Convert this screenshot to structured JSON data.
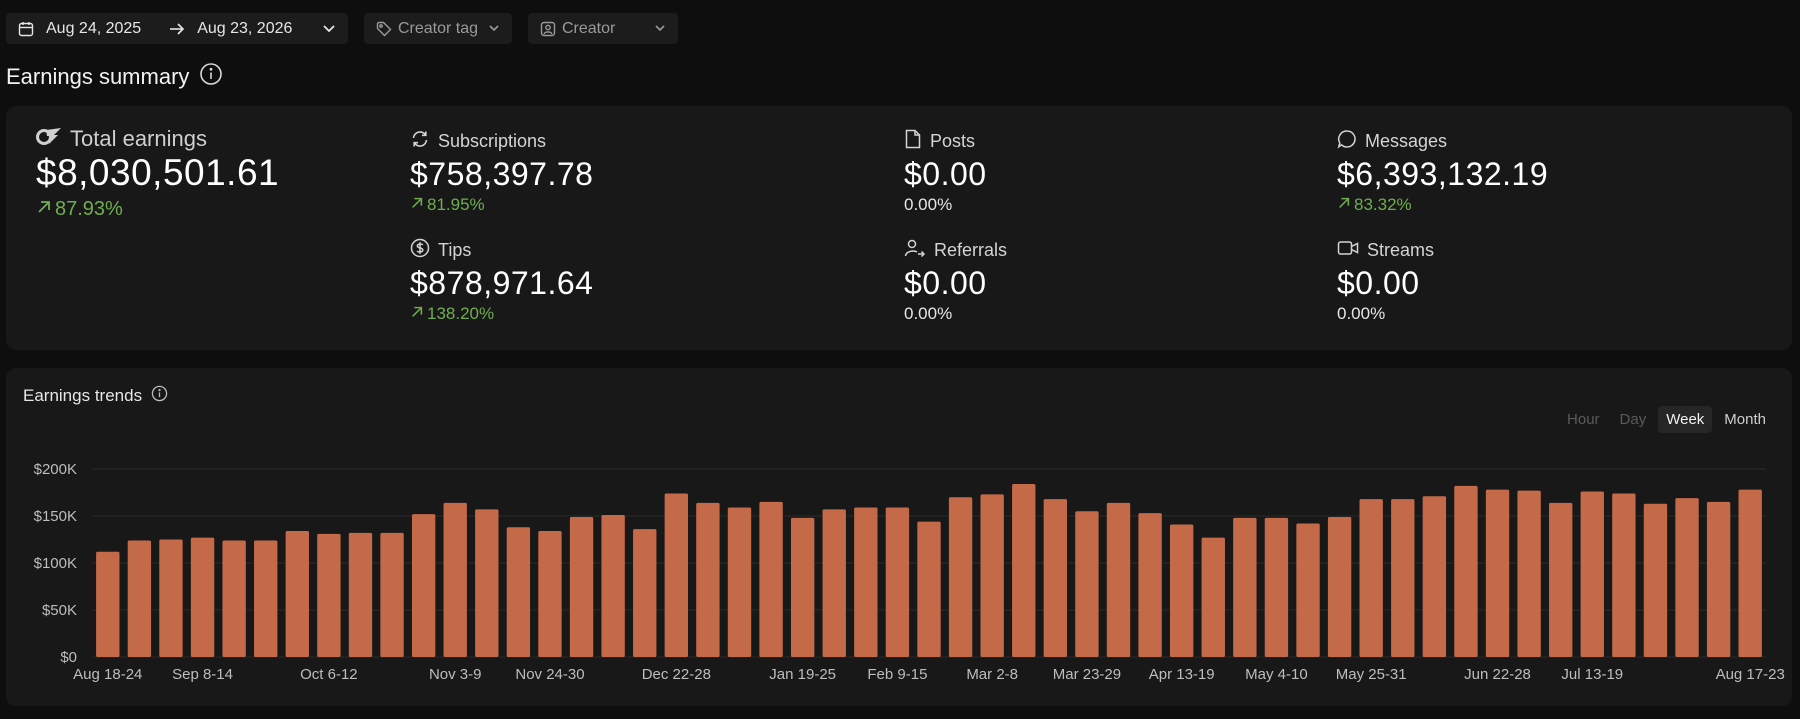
{
  "filters": {
    "date_start": "Aug 24, 2025",
    "date_end": "Aug 23, 2026",
    "creator_tag_placeholder": "Creator tag",
    "creator_placeholder": "Creator"
  },
  "summary": {
    "title": "Earnings summary",
    "total": {
      "label": "Total earnings",
      "value": "$8,030,501.61",
      "change": "87.93%"
    },
    "subscriptions": {
      "label": "Subscriptions",
      "value": "$758,397.78",
      "change": "81.95%"
    },
    "tips": {
      "label": "Tips",
      "value": "$878,971.64",
      "change": "138.20%"
    },
    "posts": {
      "label": "Posts",
      "value": "$0.00",
      "change": "0.00%"
    },
    "referrals": {
      "label": "Referrals",
      "value": "$0.00",
      "change": "0.00%"
    },
    "messages": {
      "label": "Messages",
      "value": "$6,393,132.19",
      "change": "83.32%"
    },
    "streams": {
      "label": "Streams",
      "value": "$0.00",
      "change": "0.00%"
    }
  },
  "trends": {
    "title": "Earnings trends",
    "granularity": [
      "Hour",
      "Day",
      "Week",
      "Month"
    ],
    "selected_granularity": "Week"
  },
  "colors": {
    "bar": "#c46a48",
    "positive": "#6fae4e",
    "background": "#0e0e0e",
    "card": "#181818"
  },
  "chart_data": {
    "type": "bar",
    "ylim": [
      0,
      200000
    ],
    "y_ticks": [
      0,
      50000,
      100000,
      150000,
      200000
    ],
    "y_tick_labels": [
      "$0",
      "$50K",
      "$100K",
      "$150K",
      "$200K"
    ],
    "x_tick_labels": [
      {
        "index": 0,
        "label": "Aug 18-24"
      },
      {
        "index": 3,
        "label": "Sep 8-14"
      },
      {
        "index": 7,
        "label": "Oct 6-12"
      },
      {
        "index": 11,
        "label": "Nov 3-9"
      },
      {
        "index": 14,
        "label": "Nov 24-30"
      },
      {
        "index": 18,
        "label": "Dec 22-28"
      },
      {
        "index": 22,
        "label": "Jan 19-25"
      },
      {
        "index": 25,
        "label": "Feb 9-15"
      },
      {
        "index": 28,
        "label": "Mar 2-8"
      },
      {
        "index": 31,
        "label": "Mar 23-29"
      },
      {
        "index": 34,
        "label": "Apr 13-19"
      },
      {
        "index": 37,
        "label": "May 4-10"
      },
      {
        "index": 40,
        "label": "May 25-31"
      },
      {
        "index": 44,
        "label": "Jun 22-28"
      },
      {
        "index": 47,
        "label": "Jul 13-19"
      },
      {
        "index": 52,
        "label": "Aug 17-23"
      }
    ],
    "values": [
      112000,
      124000,
      125000,
      127000,
      124000,
      124000,
      134000,
      131000,
      132000,
      132000,
      152000,
      164000,
      157000,
      138000,
      134000,
      149000,
      151000,
      136000,
      174000,
      164000,
      159000,
      165000,
      148000,
      157000,
      159000,
      159000,
      144000,
      170000,
      173000,
      184000,
      168000,
      155000,
      164000,
      153000,
      141000,
      127000,
      148000,
      148000,
      142000,
      149000,
      168000,
      168000,
      171000,
      182000,
      178000,
      177000,
      164000,
      176000,
      174000,
      163000,
      169000,
      165000,
      178000
    ]
  }
}
